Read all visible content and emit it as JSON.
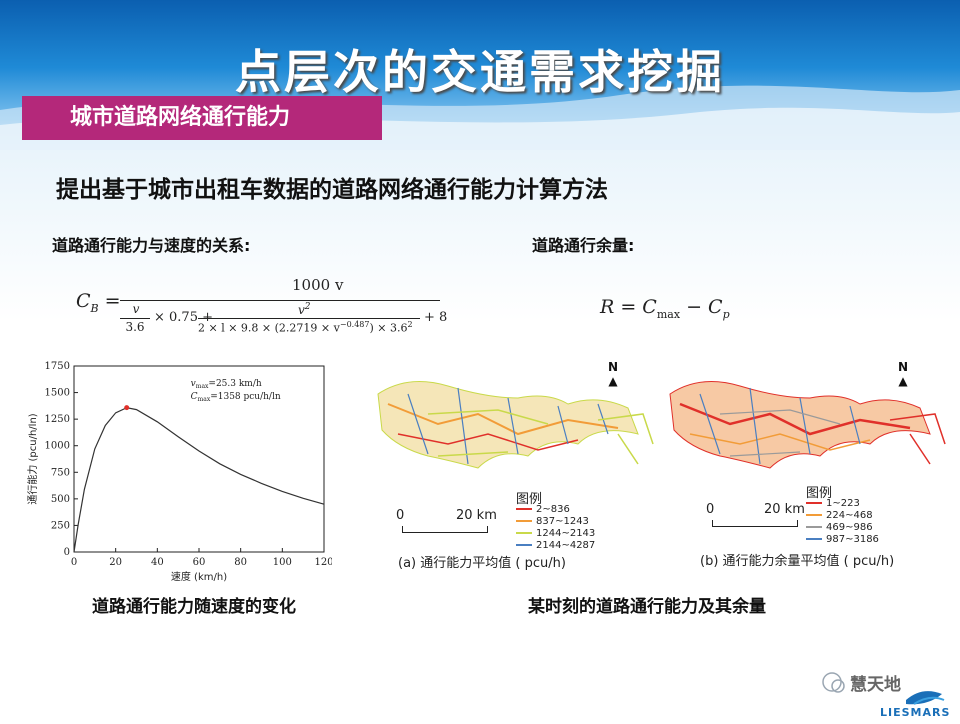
{
  "header": {
    "title": "点层次的交通需求挖掘",
    "section_tab": "城市道路网络通行能力"
  },
  "subtitle": "提出基于城市出租车数据的道路网络通行能力计算方法",
  "left": {
    "formula_label": "道路通行能力与速度的关系:",
    "formula": {
      "lhs": "C",
      "lhs_sub": "B",
      "numerator": "1000 v",
      "term1_num": "v",
      "term1_den": "3.6",
      "term1_rest": "× 0.75 +",
      "term2_num": "v",
      "term2_num_sup": "2",
      "term2_den_a": "2 × l × 9.8 × (2.2719 × v",
      "term2_den_sup": "−0.487",
      "term2_den_b": ") × 3.6",
      "term2_den_sup2": "2",
      "tail": "+ 8"
    },
    "caption": "道路通行能力随速度的变化"
  },
  "right": {
    "formula_label": "道路通行余量:",
    "formula": {
      "r": "R = C",
      "sub1": "max",
      "mid": " − C",
      "sub2": "p"
    },
    "caption": "某时刻的道路通行能力及其余量"
  },
  "chart_data": {
    "type": "line",
    "title": "",
    "xlabel": "速度 (km/h)",
    "ylabel": "通行能力 (pcu/h/ln)",
    "xlim": [
      0,
      120
    ],
    "ylim": [
      0,
      1750
    ],
    "xticks": [
      0,
      20,
      40,
      60,
      80,
      100,
      120
    ],
    "yticks": [
      0,
      250,
      500,
      750,
      1000,
      1250,
      1500,
      1750
    ],
    "series": [
      {
        "x": [
          0,
          2,
          5,
          10,
          15,
          20,
          25.3,
          30,
          40,
          50,
          60,
          70,
          80,
          90,
          100,
          110,
          120
        ],
        "values": [
          0,
          260,
          590,
          970,
          1190,
          1310,
          1358,
          1340,
          1225,
          1085,
          950,
          830,
          730,
          645,
          570,
          505,
          450
        ]
      }
    ],
    "peak": {
      "x": 25.3,
      "y": 1358
    },
    "annotation_line1": "v",
    "annotation_line1_sub": "max",
    "annotation_line1_rest": "=25.3 km/h",
    "annotation_line2": "C",
    "annotation_line2_sub": "max",
    "annotation_line2_rest": "=1358 pcu/h/ln",
    "line_color": "#333333",
    "peak_color": "#e0302a"
  },
  "map_a": {
    "north_label": "N",
    "legend_title": "图例",
    "legend": [
      {
        "label": "2~836",
        "color": "#e0302a"
      },
      {
        "label": "837~1243",
        "color": "#f29c38"
      },
      {
        "label": "1244~2143",
        "color": "#c9d94a"
      },
      {
        "label": "2144~4287",
        "color": "#4a7fc1"
      }
    ],
    "scale_left": "0",
    "scale_right": "20 km",
    "caption": "(a) 通行能力平均值 ( pcu/h)"
  },
  "map_b": {
    "north_label": "N",
    "legend_title": "图例",
    "legend": [
      {
        "label": "1~223",
        "color": "#e0302a"
      },
      {
        "label": "224~468",
        "color": "#f29c38"
      },
      {
        "label": "469~986",
        "color": "#9a9a9a"
      },
      {
        "label": "987~3186",
        "color": "#4a7fc1"
      }
    ],
    "scale_left": "0",
    "scale_right": "20 km",
    "caption": "(b) 通行能力余量平均值 ( pcu/h)"
  },
  "footer": {
    "watermark": "慧天地",
    "logo_text": "LIESMARS"
  }
}
